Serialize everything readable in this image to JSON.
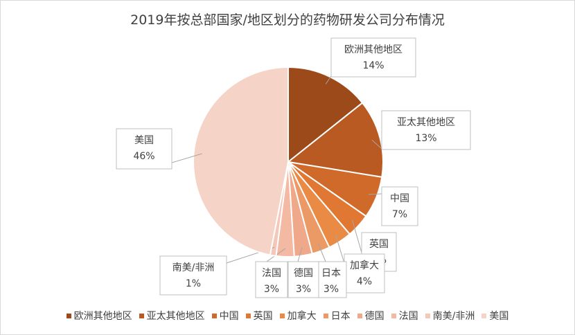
{
  "chart_data": {
    "type": "pie",
    "title": "2019年按总部国家/地区划分的药物研发公司分布情况",
    "categories": [
      "欧洲其他地区",
      "亚太其他地区",
      "中国",
      "英国",
      "加拿大",
      "日本",
      "德国",
      "法国",
      "南美/非洲",
      "美国"
    ],
    "values": [
      14,
      13,
      7,
      4,
      4,
      3,
      3,
      3,
      1,
      46
    ],
    "value_labels": [
      "14%",
      "13%",
      "7%",
      "4%",
      "4%",
      "3%",
      "3%",
      "3%",
      "1%",
      "46%"
    ],
    "data_label_categories": [
      "欧洲其他地区",
      "亚太其他地区",
      "中国",
      "英国",
      "加拿大",
      "日本",
      "德国",
      "法国",
      "南美/非洲",
      "美国"
    ],
    "colors": [
      "#9c4a1a",
      "#b85a22",
      "#cf6a2a",
      "#e07733",
      "#e98a45",
      "#eb9965",
      "#efa88a",
      "#f3b9a3",
      "#f5c7b8",
      "#f6d3c7"
    ],
    "legend_position": "bottom",
    "units": "%"
  }
}
